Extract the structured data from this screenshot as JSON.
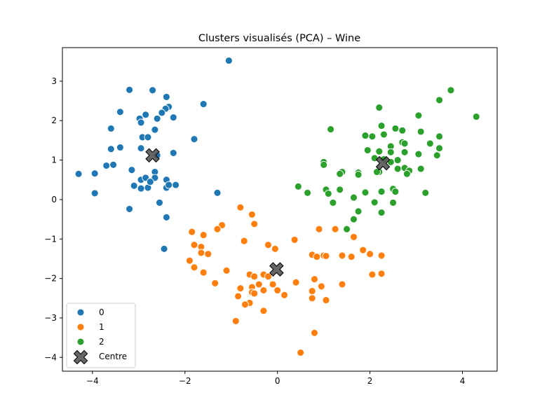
{
  "colors": {
    "series0": "#1f77b4",
    "series1": "#ff7f0e",
    "series2": "#2ca02c",
    "centroid": "#555555"
  },
  "chart_data": {
    "type": "scatter",
    "title": "Clusters visualisés (PCA) – Wine",
    "xlabel": "",
    "ylabel": "",
    "xlim": [
      -4.65,
      4.75
    ],
    "ylim": [
      -4.35,
      3.85
    ],
    "xticks": [
      -4,
      -2,
      0,
      2,
      4
    ],
    "xtick_labels": [
      "−4",
      "−2",
      "0",
      "2",
      "4"
    ],
    "yticks": [
      -4,
      -3,
      -2,
      -1,
      0,
      1,
      2,
      3
    ],
    "ytick_labels": [
      "−4",
      "−3",
      "−2",
      "−1",
      "0",
      "1",
      "2",
      "3"
    ],
    "grid": false,
    "legend_position": "lower-left",
    "series": [
      {
        "name": "0",
        "color": "#1f77b4",
        "points": [
          [
            -1.05,
            3.52
          ],
          [
            -3.2,
            2.78
          ],
          [
            -2.7,
            2.77
          ],
          [
            -2.4,
            2.6
          ],
          [
            -2.35,
            2.35
          ],
          [
            -2.42,
            2.3
          ],
          [
            -1.6,
            2.42
          ],
          [
            -3.4,
            2.22
          ],
          [
            -2.85,
            2.15
          ],
          [
            -2.5,
            2.2
          ],
          [
            -2.25,
            2.08
          ],
          [
            -2.98,
            2.05
          ],
          [
            -2.6,
            2.05
          ],
          [
            -2.95,
            1.95
          ],
          [
            -3.6,
            1.8
          ],
          [
            -2.65,
            1.77
          ],
          [
            -2.92,
            1.58
          ],
          [
            -2.8,
            1.58
          ],
          [
            -1.8,
            1.53
          ],
          [
            -3.6,
            1.28
          ],
          [
            -3.4,
            1.32
          ],
          [
            -2.95,
            1.3
          ],
          [
            -2.25,
            1.18
          ],
          [
            -2.6,
            1.12
          ],
          [
            -3.7,
            0.86
          ],
          [
            -3.55,
            0.88
          ],
          [
            -4.3,
            0.65
          ],
          [
            -3.95,
            0.66
          ],
          [
            -3.15,
            0.75
          ],
          [
            -2.65,
            0.7
          ],
          [
            -2.95,
            0.5
          ],
          [
            -2.85,
            0.55
          ],
          [
            -2.65,
            0.55
          ],
          [
            -2.4,
            0.5
          ],
          [
            -3.1,
            0.35
          ],
          [
            -2.95,
            0.28
          ],
          [
            -2.8,
            0.3
          ],
          [
            -2.75,
            0.45
          ],
          [
            -2.4,
            0.3
          ],
          [
            -2.35,
            0.37
          ],
          [
            -2.2,
            0.37
          ],
          [
            -1.3,
            0.17
          ],
          [
            -3.95,
            0.16
          ],
          [
            -2.55,
            -0.08
          ],
          [
            -3.2,
            -0.24
          ],
          [
            -2.4,
            -0.45
          ],
          [
            -1.85,
            -0.82
          ],
          [
            -2.45,
            -1.25
          ]
        ]
      },
      {
        "name": "1",
        "color": "#ff7f0e",
        "points": [
          [
            -0.8,
            -0.2
          ],
          [
            -0.55,
            -0.38
          ],
          [
            -1.2,
            -0.65
          ],
          [
            -0.5,
            -0.62
          ],
          [
            -1.3,
            -0.75
          ],
          [
            -1.85,
            -0.82
          ],
          [
            -1.6,
            -0.9
          ],
          [
            -0.72,
            -1.05
          ],
          [
            -1.8,
            -1.15
          ],
          [
            -1.65,
            -1.2
          ],
          [
            -0.2,
            -1.15
          ],
          [
            -0.05,
            -1.25
          ],
          [
            -1.65,
            -1.35
          ],
          [
            -1.5,
            -1.38
          ],
          [
            -1.9,
            -1.55
          ],
          [
            -1.8,
            -1.72
          ],
          [
            -1.1,
            -1.8
          ],
          [
            -1.6,
            -1.85
          ],
          [
            -0.6,
            -1.9
          ],
          [
            -0.3,
            -1.9
          ],
          [
            -0.5,
            -1.95
          ],
          [
            -0.2,
            -1.95
          ],
          [
            -0.1,
            -2.15
          ],
          [
            -1.35,
            -2.12
          ],
          [
            -0.8,
            -2.25
          ],
          [
            -0.55,
            -2.22
          ],
          [
            -0.4,
            -2.15
          ],
          [
            -0.55,
            -2.35
          ],
          [
            -0.5,
            -2.38
          ],
          [
            -0.85,
            -2.45
          ],
          [
            -0.3,
            -2.3
          ],
          [
            0.0,
            -2.3
          ],
          [
            0.15,
            -2.42
          ],
          [
            -0.6,
            -2.62
          ],
          [
            -0.7,
            -2.66
          ],
          [
            -0.3,
            -2.82
          ],
          [
            -0.9,
            -3.08
          ],
          [
            0.37,
            -1.02
          ],
          [
            0.9,
            -0.75
          ],
          [
            1.25,
            -0.75
          ],
          [
            1.65,
            -0.95
          ],
          [
            0.75,
            -1.4
          ],
          [
            0.85,
            -1.45
          ],
          [
            1.0,
            -1.42
          ],
          [
            1.05,
            -1.43
          ],
          [
            1.4,
            -1.42
          ],
          [
            1.6,
            -1.45
          ],
          [
            1.85,
            -1.28
          ],
          [
            2.0,
            -1.38
          ],
          [
            2.25,
            -1.42
          ],
          [
            0.4,
            -2.1
          ],
          [
            0.8,
            -2.02
          ],
          [
            0.95,
            -2.2
          ],
          [
            0.75,
            -2.32
          ],
          [
            0.75,
            -2.5
          ],
          [
            1.05,
            -2.55
          ],
          [
            1.4,
            -2.15
          ],
          [
            2.05,
            -1.9
          ],
          [
            2.25,
            -1.88
          ],
          [
            0.8,
            -3.38
          ],
          [
            0.5,
            -3.88
          ]
        ]
      },
      {
        "name": "2",
        "color": "#2ca02c",
        "points": [
          [
            3.75,
            2.77
          ],
          [
            4.3,
            2.1
          ],
          [
            3.5,
            2.52
          ],
          [
            2.2,
            2.33
          ],
          [
            3.05,
            2.13
          ],
          [
            1.15,
            1.78
          ],
          [
            2.25,
            1.87
          ],
          [
            2.55,
            1.8
          ],
          [
            2.7,
            1.75
          ],
          [
            3.1,
            1.72
          ],
          [
            2.3,
            1.65
          ],
          [
            1.9,
            1.62
          ],
          [
            2.05,
            1.6
          ],
          [
            2.7,
            1.45
          ],
          [
            2.75,
            1.42
          ],
          [
            3.3,
            1.42
          ],
          [
            3.5,
            1.6
          ],
          [
            2.45,
            1.35
          ],
          [
            1.95,
            1.25
          ],
          [
            2.2,
            1.22
          ],
          [
            2.45,
            1.2
          ],
          [
            2.75,
            1.2
          ],
          [
            3.05,
            1.15
          ],
          [
            3.5,
            1.3
          ],
          [
            3.45,
            1.12
          ],
          [
            2.1,
            1.05
          ],
          [
            2.3,
            1.02
          ],
          [
            2.6,
            1.0
          ],
          [
            2.45,
            0.95
          ],
          [
            1.0,
            0.95
          ],
          [
            1.0,
            0.88
          ],
          [
            2.6,
            0.78
          ],
          [
            2.75,
            0.8
          ],
          [
            2.85,
            0.73
          ],
          [
            3.1,
            0.78
          ],
          [
            2.8,
            0.65
          ],
          [
            1.4,
            0.7
          ],
          [
            1.35,
            0.65
          ],
          [
            1.75,
            0.68
          ],
          [
            1.75,
            0.63
          ],
          [
            2.2,
            0.7
          ],
          [
            2.15,
            0.7
          ],
          [
            0.45,
            0.33
          ],
          [
            0.65,
            0.17
          ],
          [
            1.05,
            0.25
          ],
          [
            1.1,
            0.15
          ],
          [
            1.35,
            0.25
          ],
          [
            2.5,
            0.27
          ],
          [
            2.25,
            0.2
          ],
          [
            3.2,
            0.17
          ],
          [
            1.9,
            0.18
          ],
          [
            2.55,
            0.2
          ],
          [
            1.65,
            0.05
          ],
          [
            1.2,
            -0.08
          ],
          [
            2.1,
            -0.07
          ],
          [
            2.5,
            -0.08
          ],
          [
            1.75,
            -0.3
          ],
          [
            2.25,
            -0.33
          ],
          [
            1.65,
            -0.5
          ],
          [
            1.5,
            -0.75
          ]
        ]
      }
    ],
    "centroids": {
      "name": "Centre",
      "color": "#555555",
      "points": [
        [
          -2.7,
          1.12
        ],
        [
          -0.02,
          -1.77
        ],
        [
          2.28,
          0.92
        ]
      ]
    }
  }
}
